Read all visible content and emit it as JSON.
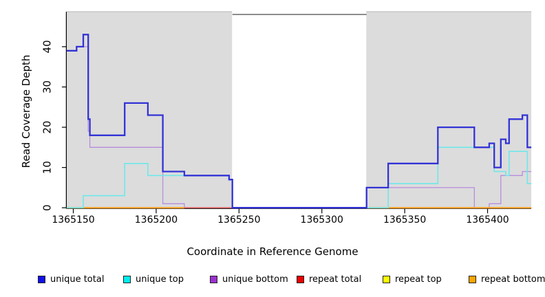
{
  "chart_data": {
    "type": "line",
    "subtype": "step-coverage-plot",
    "title": "",
    "xlabel": "Coordinate in Reference Genome",
    "ylabel": "Read Coverage Depth",
    "xlim": [
      1365146,
      1365426.4
    ],
    "ylim": [
      0,
      48.7
    ],
    "x_ticks": [
      1365150,
      1365200,
      1365250,
      1365300,
      1365350,
      1365400
    ],
    "y_ticks": [
      0,
      10,
      20,
      30,
      40
    ],
    "grid": false,
    "legend_position": "bottom",
    "plot_background": "#dcdcdc",
    "shaded_regions": [
      {
        "name": "covered-region-left",
        "x0": 1365146,
        "x1": 1365245.8,
        "color": "#dcdcdc"
      },
      {
        "name": "covered-region-right",
        "x0": 1365326.8,
        "x1": 1365426.4,
        "color": "#dcdcdc"
      }
    ],
    "gap_top_line": {
      "name": "uncovered-gap-marker",
      "x0": 1365246,
      "x1": 1365327,
      "y": 48,
      "color": "#858585"
    },
    "series": [
      {
        "name": "repeat top",
        "color": "#f5e900",
        "width": 1.3,
        "points": [
          [
            1365146,
            0
          ],
          [
            1365426.4,
            0
          ]
        ]
      },
      {
        "name": "unique bottom",
        "color": "#b78bdc",
        "width": 1.3,
        "points": [
          [
            1365146,
            39
          ],
          [
            1365152,
            40
          ],
          [
            1365159,
            19
          ],
          [
            1365160,
            15
          ],
          [
            1365204,
            1
          ],
          [
            1365217,
            0
          ],
          [
            1365327,
            5
          ],
          [
            1365392,
            0
          ],
          [
            1365401,
            1
          ],
          [
            1365408,
            8
          ],
          [
            1365421,
            9
          ],
          [
            1365426.4,
            9
          ]
        ]
      },
      {
        "name": "repeat bottom",
        "color": "#ff9f1c",
        "width": 2,
        "points": [
          [
            1365146,
            0
          ],
          [
            1365217,
            0
          ]
        ]
      },
      {
        "name": "repeat bottom (right)",
        "color": "#ff9f1c",
        "width": 2,
        "points": [
          [
            1365327,
            0
          ],
          [
            1365426.4,
            0
          ]
        ]
      },
      {
        "name": "repeat total",
        "color": "#e05050",
        "width": 1.3,
        "points": [
          [
            1365217,
            0
          ],
          [
            1365327,
            0
          ]
        ]
      },
      {
        "name": "unique top",
        "color": "#6fe7ea",
        "width": 1.6,
        "points": [
          [
            1365146,
            0
          ],
          [
            1365156,
            3
          ],
          [
            1365181,
            11
          ],
          [
            1365195,
            8
          ],
          [
            1365244,
            7
          ],
          [
            1365246,
            0
          ],
          [
            1365340,
            6
          ],
          [
            1365370,
            15
          ],
          [
            1365404,
            9
          ],
          [
            1365411,
            8
          ],
          [
            1365413,
            14
          ],
          [
            1365424,
            6
          ],
          [
            1365426.4,
            6
          ]
        ]
      },
      {
        "name": "unique total",
        "color": "#3232d6",
        "width": 2.3,
        "points": [
          [
            1365146,
            39
          ],
          [
            1365152,
            40
          ],
          [
            1365156,
            43
          ],
          [
            1365159,
            22
          ],
          [
            1365160,
            18
          ],
          [
            1365181,
            26
          ],
          [
            1365195,
            23
          ],
          [
            1365204,
            9
          ],
          [
            1365217,
            8
          ],
          [
            1365244,
            7
          ],
          [
            1365246,
            0
          ],
          [
            1365327,
            5
          ],
          [
            1365340,
            11
          ],
          [
            1365370,
            20
          ],
          [
            1365392,
            15
          ],
          [
            1365401,
            16
          ],
          [
            1365404,
            10
          ],
          [
            1365408,
            17
          ],
          [
            1365411,
            16
          ],
          [
            1365413,
            22
          ],
          [
            1365421,
            23
          ],
          [
            1365424,
            15
          ],
          [
            1365426.4,
            15
          ]
        ]
      }
    ]
  },
  "legend": {
    "items": [
      {
        "label": "unique total",
        "color": "#1010ee"
      },
      {
        "label": "unique top",
        "color": "#00eeee"
      },
      {
        "label": "unique bottom",
        "color": "#9b30d0"
      },
      {
        "label": "repeat total",
        "color": "#ee0000"
      },
      {
        "label": "repeat top",
        "color": "#ffff00"
      },
      {
        "label": "repeat bottom",
        "color": "#ffa500"
      }
    ]
  }
}
